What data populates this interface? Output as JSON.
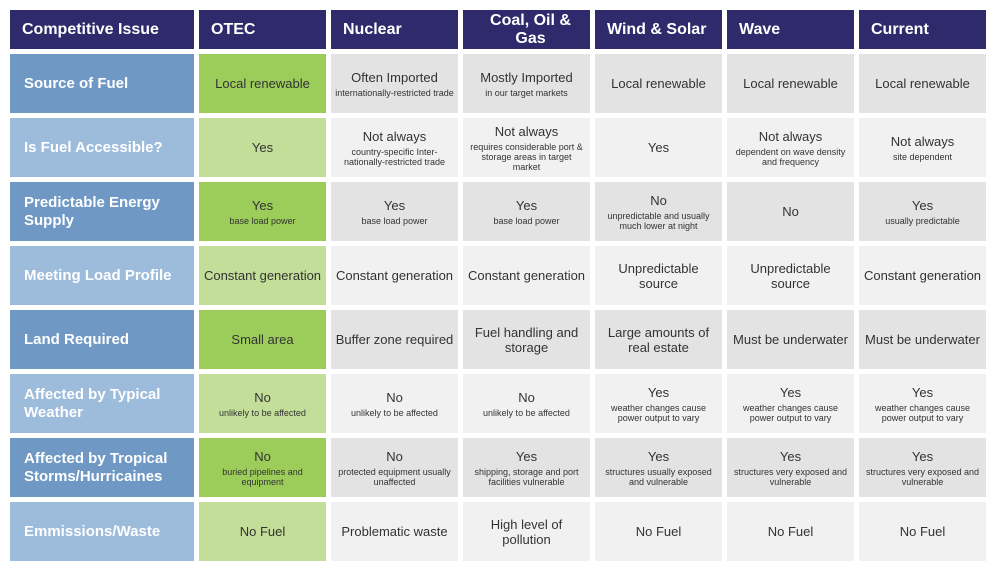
{
  "table": {
    "headers": [
      "Competitive Issue",
      "OTEC",
      "Nuclear",
      "Coal, Oil & Gas",
      "Wind & Solar",
      "Wave",
      "Current"
    ],
    "rows": [
      {
        "label": "Source of Fuel",
        "cells": [
          {
            "main": "Local renewable",
            "sub": ""
          },
          {
            "main": "Often Imported",
            "sub": "internationally-restricted trade"
          },
          {
            "main": "Mostly Imported",
            "sub": "in our target markets"
          },
          {
            "main": "Local renewable",
            "sub": ""
          },
          {
            "main": "Local renewable",
            "sub": ""
          },
          {
            "main": "Local renewable",
            "sub": ""
          }
        ]
      },
      {
        "label": "Is Fuel Accessible?",
        "cells": [
          {
            "main": "Yes",
            "sub": ""
          },
          {
            "main": "Not always",
            "sub": "country-specific Inter-nationally-restricted trade"
          },
          {
            "main": "Not always",
            "sub": "requires considerable port & storage areas in target market"
          },
          {
            "main": "Yes",
            "sub": ""
          },
          {
            "main": "Not always",
            "sub": "dependent on wave density and frequency"
          },
          {
            "main": "Not always",
            "sub": "site dependent"
          }
        ]
      },
      {
        "label": "Predictable Energy Supply",
        "cells": [
          {
            "main": "Yes",
            "sub": "base load power"
          },
          {
            "main": "Yes",
            "sub": "base load power"
          },
          {
            "main": "Yes",
            "sub": "base load power"
          },
          {
            "main": "No",
            "sub": "unpredictable and usually much lower at night"
          },
          {
            "main": "No",
            "sub": ""
          },
          {
            "main": "Yes",
            "sub": "usually predictable"
          }
        ]
      },
      {
        "label": "Meeting Load Profile",
        "cells": [
          {
            "main": "Constant generation",
            "sub": ""
          },
          {
            "main": "Constant generation",
            "sub": ""
          },
          {
            "main": "Constant generation",
            "sub": ""
          },
          {
            "main": "Unpredictable source",
            "sub": ""
          },
          {
            "main": "Unpredictable source",
            "sub": ""
          },
          {
            "main": "Constant generation",
            "sub": ""
          }
        ]
      },
      {
        "label": "Land Required",
        "cells": [
          {
            "main": "Small area",
            "sub": ""
          },
          {
            "main": "Buffer zone required",
            "sub": ""
          },
          {
            "main": "Fuel handling and storage",
            "sub": ""
          },
          {
            "main": "Large amounts of real estate",
            "sub": ""
          },
          {
            "main": "Must be underwater",
            "sub": ""
          },
          {
            "main": "Must be underwater",
            "sub": ""
          }
        ]
      },
      {
        "label": "Affected by Typical Weather",
        "cells": [
          {
            "main": "No",
            "sub": "unlikely to be affected"
          },
          {
            "main": "No",
            "sub": "unlikely to be affected"
          },
          {
            "main": "No",
            "sub": "unlikely to be affected"
          },
          {
            "main": "Yes",
            "sub": "weather changes cause power output to vary"
          },
          {
            "main": "Yes",
            "sub": "weather changes cause power output to vary"
          },
          {
            "main": "Yes",
            "sub": "weather changes cause power output to vary"
          }
        ]
      },
      {
        "label": "Affected by Tropical Storms/Hurricaines",
        "cells": [
          {
            "main": "No",
            "sub": "buried pipelines and equipment"
          },
          {
            "main": "No",
            "sub": "protected equipment usually unaffected"
          },
          {
            "main": "Yes",
            "sub": "shipping, storage and port facilities vulnerable"
          },
          {
            "main": "Yes",
            "sub": "structures usually exposed and vulnerable"
          },
          {
            "main": "Yes",
            "sub": "structures very exposed and vulnerable"
          },
          {
            "main": "Yes",
            "sub": "structures very exposed and vulnerable"
          }
        ]
      },
      {
        "label": "Emmissions/Waste",
        "cells": [
          {
            "main": "No Fuel",
            "sub": ""
          },
          {
            "main": "Problematic waste",
            "sub": ""
          },
          {
            "main": "High level of pollution",
            "sub": ""
          },
          {
            "main": "No Fuel",
            "sub": ""
          },
          {
            "main": "No Fuel",
            "sub": ""
          },
          {
            "main": "No Fuel",
            "sub": ""
          }
        ]
      }
    ]
  }
}
